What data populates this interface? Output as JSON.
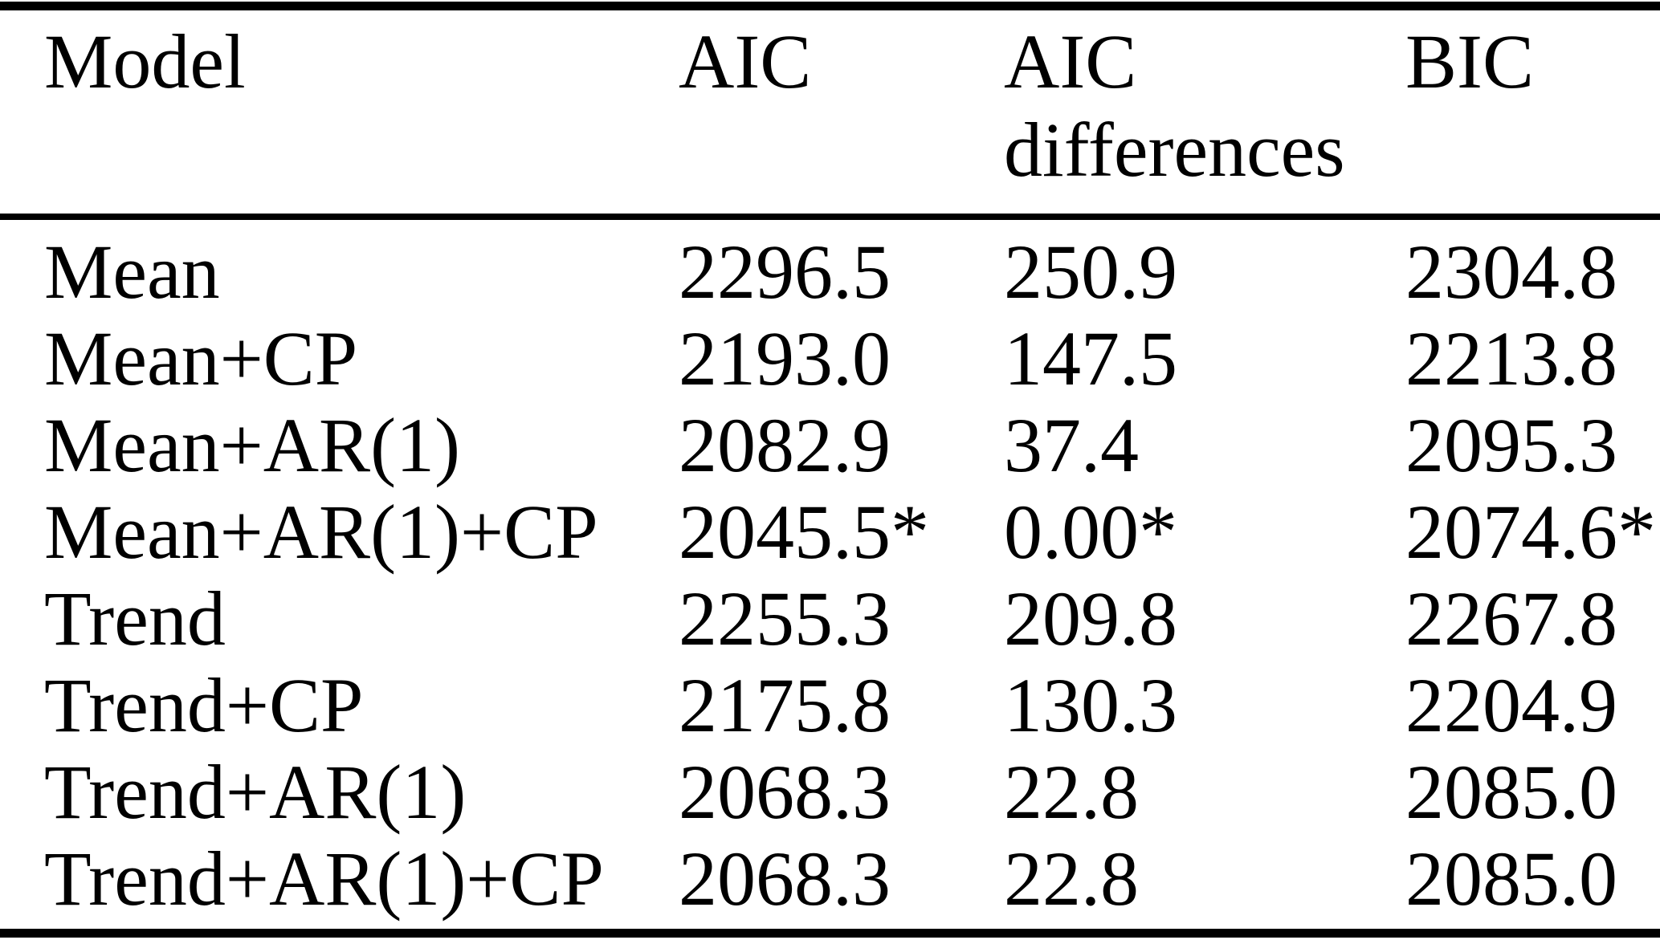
{
  "page": {
    "background_color": "#ffffff",
    "text_color": "#000000"
  },
  "table": {
    "headers": {
      "model": "Model",
      "aic": "AIC",
      "aic_differences": "AIC\ndifferences",
      "bic": "BIC"
    },
    "rows": [
      {
        "model": "Mean",
        "aic": "2296.5",
        "aic_differences": "250.9",
        "bic": "2304.8"
      },
      {
        "model": "Mean+CP",
        "aic": "2193.0",
        "aic_differences": "147.5",
        "bic": "2213.8"
      },
      {
        "model": "Mean+AR(1)",
        "aic": "2082.9",
        "aic_differences": "37.4",
        "bic": "2095.3"
      },
      {
        "model": "Mean+AR(1)+CP",
        "aic": "2045.5*",
        "aic_differences": "0.00*",
        "bic": "2074.6*"
      },
      {
        "model": "Trend",
        "aic": "2255.3",
        "aic_differences": "209.8",
        "bic": "2267.8"
      },
      {
        "model": "Trend+CP",
        "aic": "2175.8",
        "aic_differences": "130.3",
        "bic": "2204.9"
      },
      {
        "model": "Trend+AR(1)",
        "aic": "2068.3",
        "aic_differences": "22.8",
        "bic": "2085.0"
      },
      {
        "model": "Trend+AR(1)+CP",
        "aic": "2068.3",
        "aic_differences": "22.8",
        "bic": "2085.0"
      }
    ]
  },
  "chart_data": {
    "type": "table",
    "columns": [
      "Model",
      "AIC",
      "AIC differences",
      "BIC"
    ],
    "rows": [
      [
        "Mean",
        2296.5,
        250.9,
        2304.8
      ],
      [
        "Mean+CP",
        2193.0,
        147.5,
        2213.8
      ],
      [
        "Mean+AR(1)",
        2082.9,
        37.4,
        2095.3
      ],
      [
        "Mean+AR(1)+CP",
        "2045.5*",
        "0.00*",
        "2074.6*"
      ],
      [
        "Trend",
        2255.3,
        209.8,
        2267.8
      ],
      [
        "Trend+CP",
        2175.8,
        130.3,
        2204.9
      ],
      [
        "Trend+AR(1)",
        2068.3,
        22.8,
        2085.0
      ],
      [
        "Trend+AR(1)+CP",
        2068.3,
        22.8,
        2085.0
      ]
    ]
  }
}
